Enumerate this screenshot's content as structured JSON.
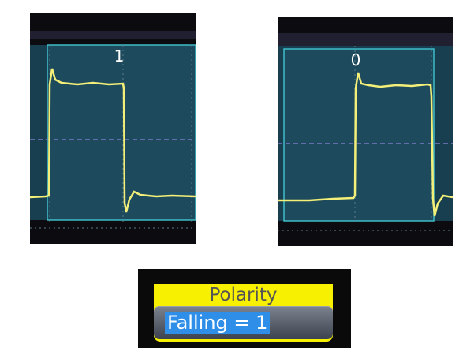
{
  "scope_left": {
    "bit_label": "1",
    "edge": "rising-then-falling"
  },
  "scope_right": {
    "bit_label": "0",
    "edge": "rising"
  },
  "polarity": {
    "header": "Polarity",
    "value": "Falling = 1"
  },
  "colors": {
    "screen_bg": "#173f4f",
    "trace": "#f3ef78",
    "grid": "#5d7c8a",
    "cursor_line": "#7a7ac8",
    "header_yellow": "#f7f000",
    "selection_blue": "#2f8fe8"
  }
}
